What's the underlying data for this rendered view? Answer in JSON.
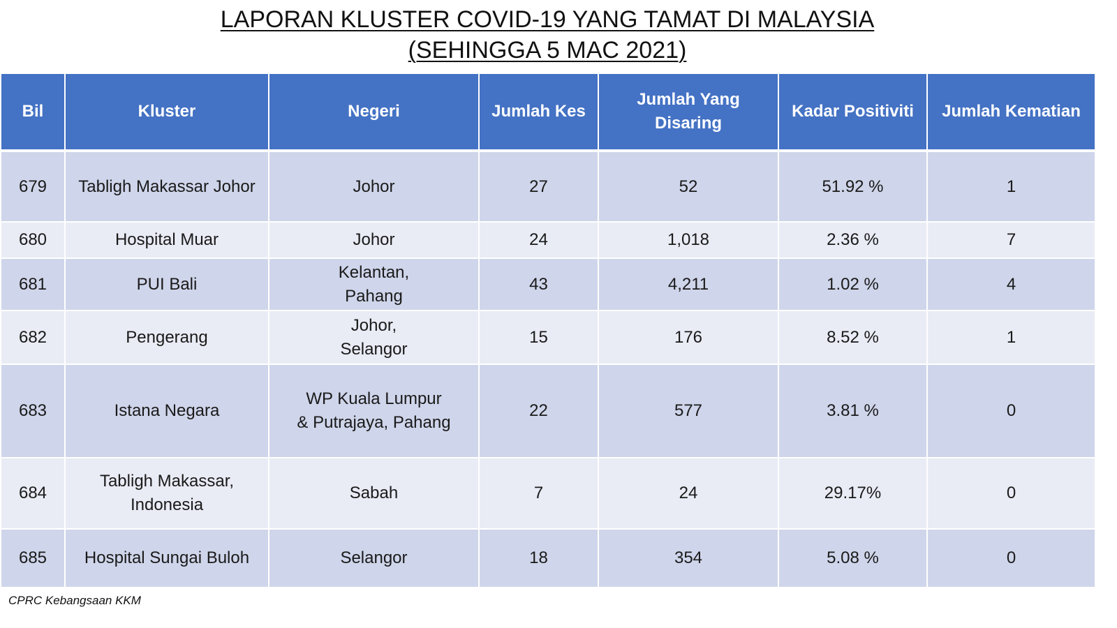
{
  "title": {
    "line1": "LAPORAN KLUSTER COVID-19 YANG TAMAT DI MALAYSIA",
    "line2": "(SEHINGGA 5 MAC 2021)"
  },
  "table": {
    "headers": {
      "bil": "Bil",
      "kluster": "Kluster",
      "negeri": "Negeri",
      "jumlah_kes": "Jumlah Kes",
      "jumlah_disaring_1": "Jumlah Yang",
      "jumlah_disaring_2": "Disaring",
      "kadar_positiviti": "Kadar Positiviti",
      "jumlah_kematian": "Jumlah Kematian"
    },
    "rows": [
      {
        "bil": "679",
        "kluster": [
          "Tabligh Makassar Johor"
        ],
        "negeri": [
          "Johor"
        ],
        "kes": "27",
        "disaring": "52",
        "positiviti": "51.92 %",
        "kematian": "1"
      },
      {
        "bil": "680",
        "kluster": [
          "Hospital Muar"
        ],
        "negeri": [
          "Johor"
        ],
        "kes": "24",
        "disaring": "1,018",
        "positiviti": "2.36 %",
        "kematian": "7"
      },
      {
        "bil": "681",
        "kluster": [
          "PUI Bali"
        ],
        "negeri": [
          "Kelantan,",
          "Pahang"
        ],
        "kes": "43",
        "disaring": "4,211",
        "positiviti": "1.02 %",
        "kematian": "4"
      },
      {
        "bil": "682",
        "kluster": [
          "Pengerang"
        ],
        "negeri": [
          "Johor,",
          "Selangor"
        ],
        "kes": "15",
        "disaring": "176",
        "positiviti": "8.52 %",
        "kematian": "1"
      },
      {
        "bil": "683",
        "kluster": [
          "Istana Negara"
        ],
        "negeri": [
          "WP Kuala Lumpur",
          "& Putrajaya, Pahang"
        ],
        "kes": "22",
        "disaring": "577",
        "positiviti": "3.81 %",
        "kematian": "0"
      },
      {
        "bil": "684",
        "kluster": [
          "Tabligh Makassar,",
          "Indonesia"
        ],
        "negeri": [
          "Sabah"
        ],
        "kes": "7",
        "disaring": "24",
        "positiviti": "29.17%",
        "kematian": "0"
      },
      {
        "bil": "685",
        "kluster": [
          "Hospital Sungai Buloh"
        ],
        "negeri": [
          "Selangor"
        ],
        "kes": "18",
        "disaring": "354",
        "positiviti": "5.08 %",
        "kematian": "0"
      }
    ]
  },
  "footer": {
    "source": "CPRC Kebangsaan KKM"
  }
}
